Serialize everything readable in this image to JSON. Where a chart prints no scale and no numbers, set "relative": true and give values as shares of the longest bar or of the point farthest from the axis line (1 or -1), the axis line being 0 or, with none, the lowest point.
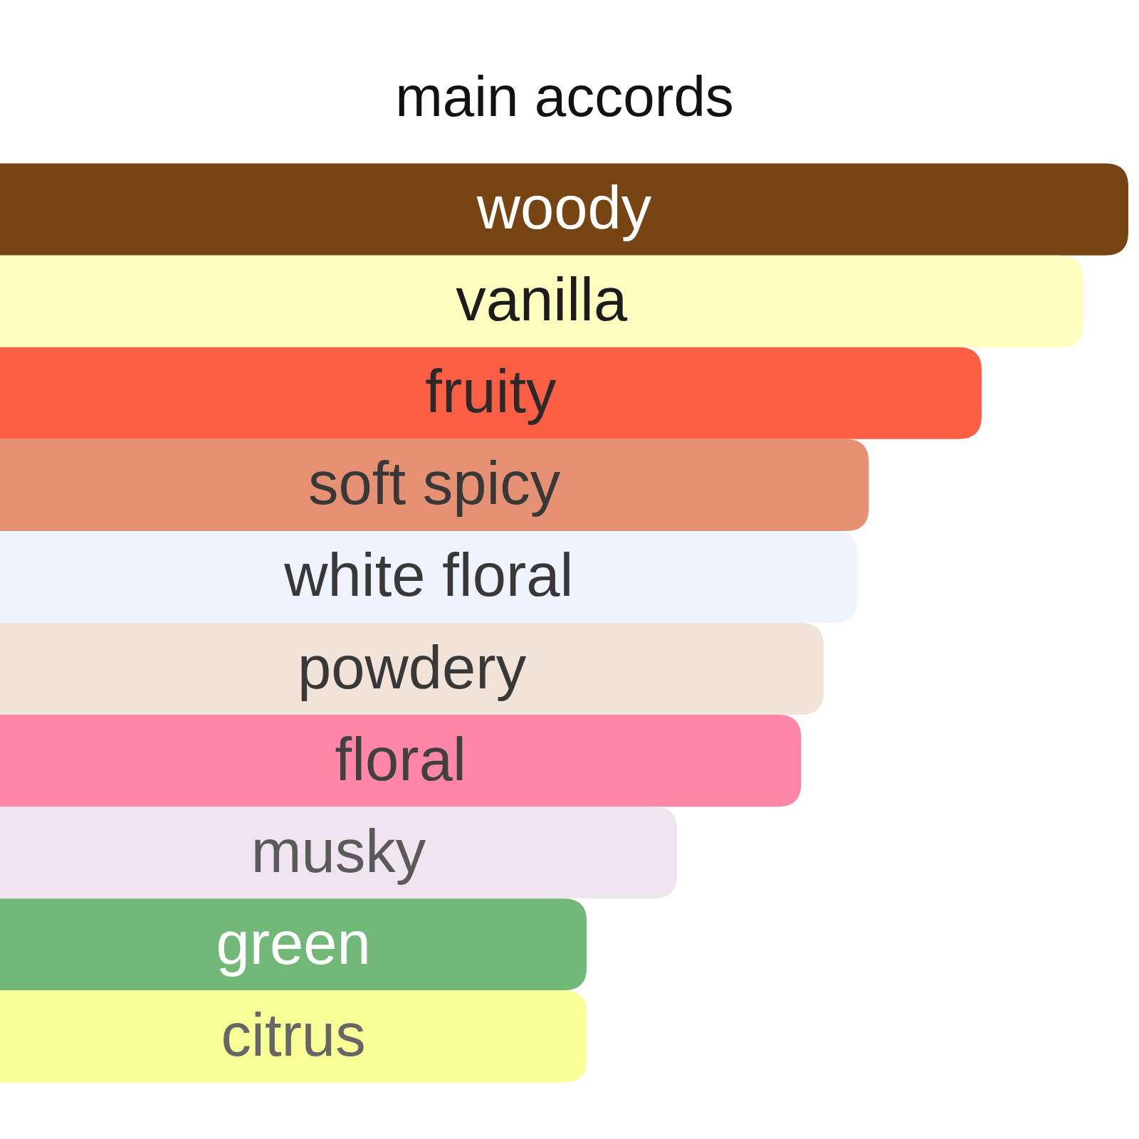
{
  "chart_data": {
    "type": "bar",
    "orientation": "horizontal",
    "relative": true,
    "title": "main accords",
    "categories": [
      "woody",
      "vanilla",
      "fruity",
      "soft spicy",
      "white floral",
      "powdery",
      "floral",
      "musky",
      "green",
      "citrus"
    ],
    "values": [
      1,
      0.96,
      0.87,
      0.77,
      0.76,
      0.73,
      0.71,
      0.6,
      0.52,
      0.52
    ],
    "colors": [
      "#774414",
      "#fffdc0",
      "#fd5f44",
      "#e69174",
      "#eef3fd",
      "#f1e3d8",
      "#ff86a7",
      "#f0e4f0",
      "#72b979",
      "#f9fe96"
    ]
  }
}
